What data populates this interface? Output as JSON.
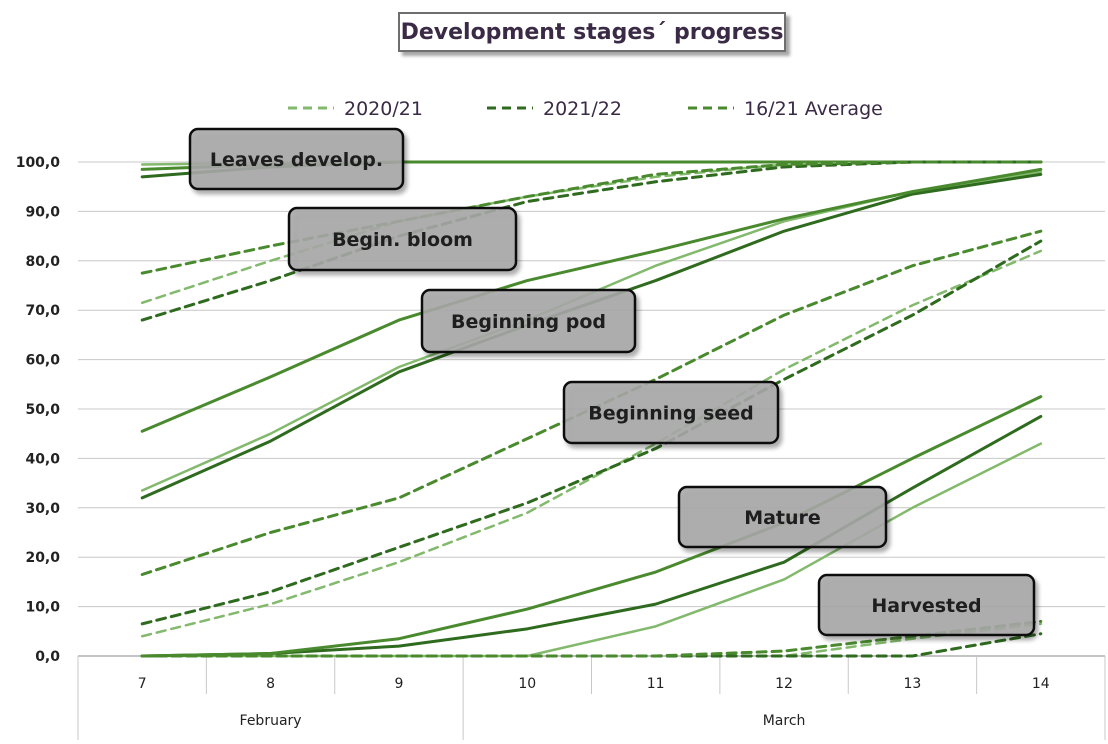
{
  "chart_data": {
    "type": "line",
    "title": "Development stages´ progress",
    "x": [
      "7",
      "8",
      "9",
      "10",
      "11",
      "12",
      "13",
      "14"
    ],
    "x_groups": [
      {
        "label": "February",
        "from": 0,
        "to": 2
      },
      {
        "label": "March",
        "from": 3,
        "to": 7
      }
    ],
    "ylim": [
      0,
      100
    ],
    "yticks": [
      "0,0",
      "10,0",
      "20,0",
      "30,0",
      "40,0",
      "50,0",
      "60,0",
      "70,0",
      "80,0",
      "90,0",
      "100,0"
    ],
    "legend": [
      {
        "label": "2020/21",
        "color": "#82b96c"
      },
      {
        "label": "2021/22",
        "color": "#2f6b1e"
      },
      {
        "label": "16/21 Average",
        "color": "#4a8a2e"
      }
    ],
    "stages": [
      {
        "label": "Leaves develop.",
        "series": [
          {
            "name": "2020/21",
            "values": [
              99.5,
              99.8,
              100,
              100,
              100,
              100,
              100,
              100
            ]
          },
          {
            "name": "2021/22",
            "values": [
              97,
              99,
              100,
              100,
              100,
              100,
              100,
              100
            ]
          },
          {
            "name": "16/21 Average",
            "values": [
              98.5,
              99.5,
              100,
              100,
              100,
              100,
              100,
              100
            ]
          }
        ]
      },
      {
        "label": "Begin. bloom",
        "series": [
          {
            "name": "2020/21",
            "values": [
              71.5,
              80,
              88,
              93,
              97,
              99.5,
              100,
              100
            ]
          },
          {
            "name": "2021/22",
            "values": [
              68,
              76,
              85,
              92,
              96,
              99,
              100,
              100
            ]
          },
          {
            "name": "16/21 Average",
            "values": [
              77.5,
              83,
              88,
              93,
              97.5,
              99.5,
              100,
              100
            ]
          }
        ]
      },
      {
        "label": "Beginning pod",
        "series": [
          {
            "name": "2020/21",
            "values": [
              33.5,
              45,
              58.5,
              68,
              79,
              88,
              94,
              98
            ]
          },
          {
            "name": "2021/22",
            "values": [
              32,
              43.5,
              57.5,
              67,
              76,
              86,
              93.5,
              97.5
            ]
          },
          {
            "name": "16/21 Average",
            "values": [
              45.5,
              56.5,
              68,
              76,
              82,
              88.5,
              94,
              98.5
            ]
          }
        ]
      },
      {
        "label": "Beginning seed",
        "series": [
          {
            "name": "2020/21",
            "values": [
              4,
              10.5,
              19,
              29,
              43,
              58,
              71,
              82
            ]
          },
          {
            "name": "2021/22",
            "values": [
              6.5,
              13,
              22,
              31,
              42,
              56,
              69,
              84
            ]
          },
          {
            "name": "16/21 Average",
            "values": [
              16.5,
              25,
              32,
              44,
              56,
              69,
              79,
              86
            ]
          }
        ]
      },
      {
        "label": "Mature",
        "series": [
          {
            "name": "2020/21",
            "values": [
              0,
              0,
              0,
              0,
              6,
              15.5,
              30,
              43
            ]
          },
          {
            "name": "2021/22",
            "values": [
              0,
              0.5,
              2,
              5.5,
              10.5,
              19,
              34,
              48.5
            ]
          },
          {
            "name": "16/21 Average",
            "values": [
              0,
              0.5,
              3.5,
              9.5,
              17,
              27,
              40,
              52.5
            ]
          }
        ]
      },
      {
        "label": "Harvested",
        "series": [
          {
            "name": "2020/21",
            "values": [
              0,
              0,
              0,
              0,
              0,
              0,
              3.5,
              6.5
            ]
          },
          {
            "name": "2021/22",
            "values": [
              0,
              0,
              0,
              0,
              0,
              0,
              0,
              4.5
            ]
          },
          {
            "name": "16/21 Average",
            "values": [
              0,
              0,
              0,
              0,
              0,
              1,
              4,
              7
            ]
          }
        ]
      }
    ]
  }
}
